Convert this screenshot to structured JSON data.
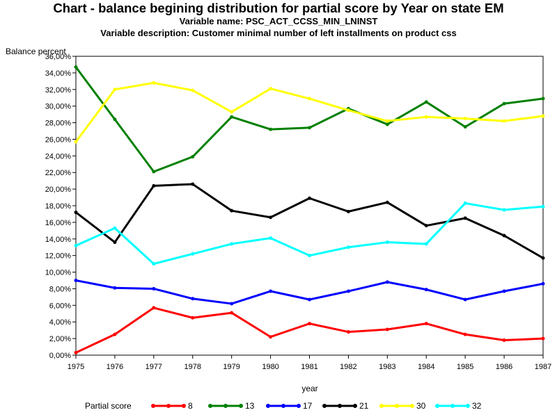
{
  "chart_data": {
    "type": "line",
    "title": "Chart - balance begining distribution for partial score by Year on state EM",
    "subtitle_1": "Variable name: PSC_ACT_CCSS_MIN_LNINST",
    "subtitle_2": "Variable description: Customer minimal number of left installments on product css",
    "xlabel": "year",
    "ylabel": "Balance percent",
    "legend_title": "Partial score",
    "legend_position": "bottom",
    "grid": false,
    "x": [
      1975,
      1976,
      1977,
      1978,
      1979,
      1980,
      1981,
      1982,
      1983,
      1984,
      1985,
      1986,
      1987
    ],
    "ylim": [
      0,
      36
    ],
    "y_ticks": [
      "0,00%",
      "2,00%",
      "4,00%",
      "6,00%",
      "8,00%",
      "10,00%",
      "12,00%",
      "14,00%",
      "16,00%",
      "18,00%",
      "20,00%",
      "22,00%",
      "24,00%",
      "26,00%",
      "28,00%",
      "30,00%",
      "32,00%",
      "34,00%",
      "36,00%"
    ],
    "series": [
      {
        "name": "8",
        "color": "#ff0000",
        "values": [
          0.3,
          2.5,
          5.7,
          4.5,
          5.1,
          2.2,
          3.8,
          2.8,
          3.1,
          3.8,
          2.5,
          1.8,
          2.0
        ]
      },
      {
        "name": "13",
        "color": "#008000",
        "values": [
          34.7,
          28.4,
          22.1,
          23.9,
          28.7,
          27.2,
          27.4,
          29.7,
          27.8,
          30.5,
          27.5,
          30.3,
          30.9
        ]
      },
      {
        "name": "17",
        "color": "#0000ff",
        "values": [
          9.0,
          8.1,
          8.0,
          6.8,
          6.2,
          7.7,
          6.7,
          7.7,
          8.8,
          7.9,
          6.7,
          7.7,
          8.6
        ]
      },
      {
        "name": "21",
        "color": "#000000",
        "values": [
          17.2,
          13.6,
          20.4,
          20.6,
          17.4,
          16.6,
          18.9,
          17.3,
          18.4,
          15.6,
          16.5,
          14.4,
          11.7
        ]
      },
      {
        "name": "30",
        "color": "#ffff00",
        "values": [
          25.7,
          32.0,
          32.8,
          31.9,
          29.3,
          32.1,
          30.9,
          29.5,
          28.2,
          28.7,
          28.5,
          28.2,
          28.8
        ]
      },
      {
        "name": "32",
        "color": "#00ffff",
        "values": [
          13.2,
          15.3,
          11.0,
          12.2,
          13.4,
          14.1,
          12.0,
          13.0,
          13.6,
          13.4,
          18.3,
          17.5,
          17.9
        ]
      }
    ]
  }
}
